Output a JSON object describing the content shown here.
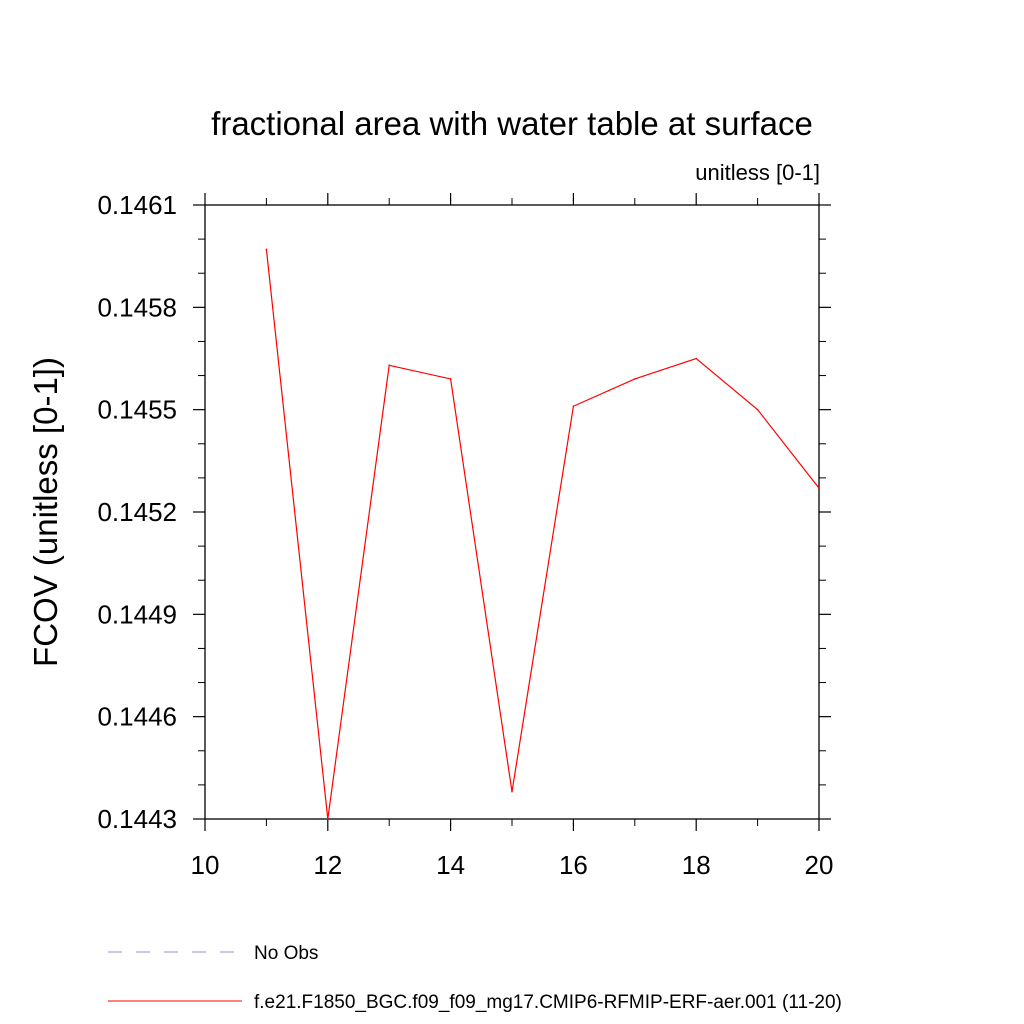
{
  "colors": {
    "series_line": "#ff0000",
    "obs_line": "#9a8fc8",
    "axis": "#000000",
    "background": "#ffffff"
  },
  "chart_data": {
    "type": "line",
    "title": "fractional area with water table at surface",
    "subtitle": "unitless [0-1]",
    "xlabel": "",
    "ylabel": "FCOV  (unitless [0-1])",
    "xlim": [
      10,
      20
    ],
    "ylim": [
      0.1443,
      0.1461
    ],
    "x_ticks": [
      10,
      12,
      14,
      16,
      18,
      20
    ],
    "x_tick_labels": [
      "10",
      "12",
      "14",
      "16",
      "18",
      "20"
    ],
    "y_ticks": [
      0.1443,
      0.1446,
      0.1449,
      0.1452,
      0.1455,
      0.1458,
      0.1461
    ],
    "y_tick_labels": [
      "0.1443",
      "0.1446",
      "0.1449",
      "0.1452",
      "0.1455",
      "0.1458",
      "0.1461"
    ],
    "y_minor_step": 0.0001,
    "x_minor_step": 1,
    "grid": false,
    "legend_position": "bottom",
    "series": [
      {
        "name": "f.e21.F1850_BGC.f09_f09_mg17.CMIP6-RFMIP-ERF-aer.001 (11-20)",
        "style": "solid",
        "color": "#ff0000",
        "x": [
          11,
          12,
          13,
          14,
          15,
          16,
          17,
          18,
          19,
          20
        ],
        "y": [
          0.14597,
          0.1443,
          0.14563,
          0.14559,
          0.14438,
          0.14551,
          0.14559,
          0.14565,
          0.1455,
          0.14527
        ]
      }
    ],
    "legend": [
      {
        "label": "No Obs",
        "style": "dashed",
        "color": "#9a8fc8"
      },
      {
        "label": "f.e21.F1850_BGC.f09_f09_mg17.CMIP6-RFMIP-ERF-aer.001 (11-20)",
        "style": "solid",
        "color": "#ff0000"
      }
    ]
  }
}
